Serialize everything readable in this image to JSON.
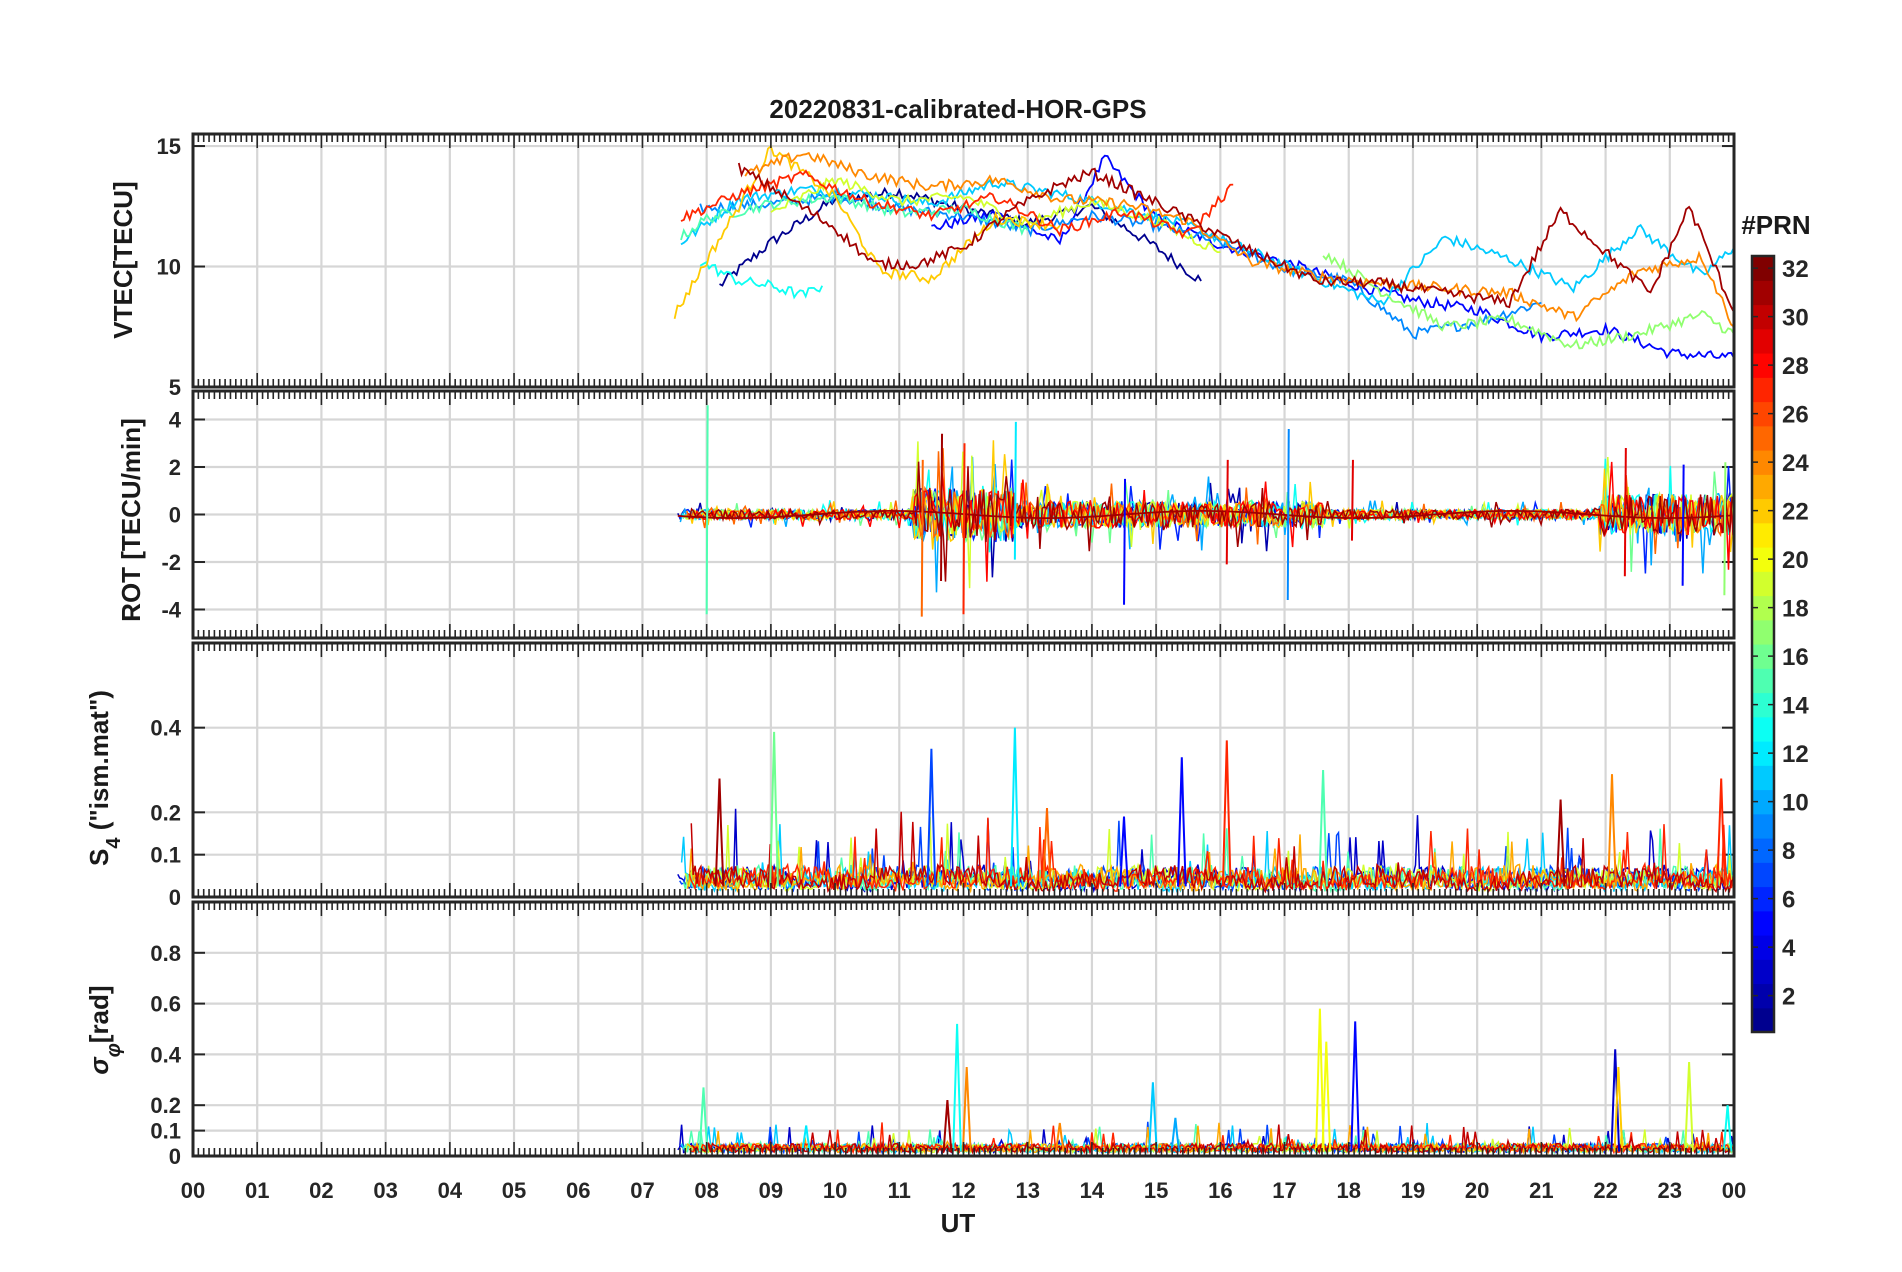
{
  "figure": {
    "title": "20220831-calibrated-HOR-GPS",
    "xlabel": "UT",
    "colorbar_title": "#PRN"
  },
  "chart_data": {
    "type": "line",
    "title": "20220831-calibrated-HOR-GPS",
    "xlabel": "UT",
    "x_range": [
      0,
      24
    ],
    "x_tick_labels": [
      "00",
      "01",
      "02",
      "03",
      "04",
      "05",
      "06",
      "07",
      "08",
      "09",
      "10",
      "11",
      "12",
      "13",
      "14",
      "15",
      "16",
      "17",
      "18",
      "19",
      "20",
      "21",
      "22",
      "23",
      "00"
    ],
    "data_start_hour": 7.55,
    "colorbar": {
      "title": "#PRN",
      "range": [
        1,
        32
      ],
      "ticks": [
        2,
        4,
        6,
        8,
        10,
        12,
        14,
        16,
        18,
        20,
        22,
        24,
        26,
        28,
        30,
        32
      ],
      "colormap": [
        "#00008f",
        "#0000ff",
        "#0080ff",
        "#00ffff",
        "#80ff80",
        "#ffff00",
        "#ff8000",
        "#ff0000",
        "#800000"
      ]
    },
    "panels": [
      {
        "id": "vtec",
        "ylabel": "VTEC[TECU]",
        "ylim": [
          5,
          15.5
        ],
        "yticks": [
          5,
          10,
          15
        ],
        "ytick_labels": [
          "5",
          "10",
          "15"
        ],
        "series": [
          {
            "prn": 1,
            "hours": [
              8.2,
              9.0,
              10.0,
              11.0,
              12.0,
              13.0,
              14.0,
              15.0,
              15.7
            ],
            "values": [
              9.2,
              11.0,
              12.8,
              13.1,
              12.4,
              11.8,
              12.5,
              10.8,
              9.4
            ]
          },
          {
            "prn": 5,
            "hours": [
              11.5,
              12.5,
              13.5,
              14.2,
              15.0,
              16.0,
              17.0,
              18.0,
              19.0,
              20.0,
              21.0,
              22.0,
              23.0,
              24.0
            ],
            "values": [
              11.6,
              12.2,
              11.0,
              14.5,
              12.0,
              10.9,
              10.2,
              9.3,
              8.6,
              8.2,
              7.1,
              7.4,
              6.4,
              6.2
            ]
          },
          {
            "prn": 9,
            "hours": [
              7.9,
              9.0,
              10.0,
              11.0,
              12.0,
              13.0,
              14.0,
              15.0,
              16.0,
              17.0,
              18.0,
              19.0,
              20.0,
              21.0
            ],
            "values": [
              12.4,
              12.6,
              12.9,
              12.4,
              12.1,
              11.5,
              12.1,
              11.7,
              11.0,
              9.9,
              9.4,
              7.2,
              7.7,
              8.5
            ]
          },
          {
            "prn": 11,
            "hours": [
              7.6,
              8.5,
              9.5,
              10.5,
              11.5,
              12.5,
              13.5,
              14.5,
              15.5,
              16.5,
              17.5,
              18.5,
              19.5,
              20.5,
              21.5,
              22.5,
              23.5,
              24.0
            ],
            "values": [
              11.0,
              12.8,
              13.2,
              13.0,
              12.6,
              13.5,
              13.0,
              12.4,
              11.7,
              10.6,
              9.5,
              8.5,
              11.2,
              10.3,
              9.1,
              11.6,
              9.6,
              10.8
            ]
          },
          {
            "prn": 13,
            "hours": [
              7.9,
              8.5,
              9.0,
              9.5,
              9.8
            ],
            "values": [
              10.2,
              9.4,
              9.2,
              8.8,
              9.2
            ]
          },
          {
            "prn": 15,
            "hours": [
              7.6,
              8.0,
              9.0,
              10.0,
              11.0,
              12.0,
              13.0
            ],
            "values": [
              11.2,
              12.0,
              12.6,
              12.9,
              12.2,
              12.4,
              11.5
            ]
          },
          {
            "prn": 17,
            "hours": [
              17.6,
              18.5,
              19.5,
              20.5,
              21.5,
              22.5,
              23.5,
              24.0
            ],
            "values": [
              10.6,
              9.0,
              7.5,
              7.8,
              6.7,
              7.2,
              8.0,
              7.2
            ]
          },
          {
            "prn": 19,
            "hours": [
              9.0,
              10.0,
              11.0,
              12.0,
              13.0,
              14.0,
              15.0,
              16.0
            ],
            "values": [
              12.2,
              13.6,
              12.7,
              12.9,
              11.8,
              12.7,
              11.9,
              10.6
            ]
          },
          {
            "prn": 22,
            "hours": [
              7.5,
              8.5,
              9.0,
              10.0,
              10.7,
              11.5,
              12.5,
              13.5
            ],
            "values": [
              8.0,
              12.5,
              14.9,
              12.9,
              9.8,
              9.5,
              12.0,
              11.7
            ]
          },
          {
            "prn": 24,
            "hours": [
              8.6,
              9.5,
              10.5,
              11.5,
              12.5,
              13.5,
              14.5,
              15.5,
              16.5,
              17.5,
              18.5,
              19.5,
              20.5,
              21.5,
              22.5,
              23.5,
              24.0
            ],
            "values": [
              13.8,
              14.7,
              13.8,
              13.3,
              13.6,
              12.8,
              12.6,
              11.9,
              10.2,
              9.6,
              9.3,
              9.1,
              8.9,
              7.9,
              9.8,
              10.4,
              7.5
            ]
          },
          {
            "prn": 27,
            "hours": [
              7.6,
              8.5,
              9.5,
              10.5,
              11.5,
              12.5,
              13.5,
              14.5,
              15.5,
              16.2
            ],
            "values": [
              12.0,
              13.0,
              13.8,
              12.7,
              12.1,
              12.9,
              11.5,
              12.3,
              11.3,
              13.4
            ]
          },
          {
            "prn": 31,
            "hours": [
              8.5,
              9.3,
              10.0,
              10.6,
              11.3,
              12.0,
              12.8,
              13.5,
              14.0,
              14.8,
              15.5,
              16.5,
              17.5,
              18.5,
              19.5,
              20.5,
              21.3,
              22.0,
              22.7,
              23.3,
              24.0
            ],
            "values": [
              14.1,
              12.8,
              11.6,
              10.1,
              10.1,
              10.8,
              12.4,
              13.4,
              13.9,
              12.9,
              12.0,
              10.6,
              9.4,
              9.3,
              8.9,
              8.5,
              12.3,
              10.6,
              8.9,
              12.5,
              8.1
            ]
          }
        ]
      },
      {
        "id": "rot",
        "ylabel": "ROT [TECU/min]",
        "ylim": [
          -5.2,
          5.2
        ],
        "yticks": [
          -4,
          -2,
          0,
          2,
          4
        ],
        "ytick_labels": [
          "-4",
          "-2",
          "0",
          "2",
          "4"
        ],
        "range_hours": [
          7.55,
          24.0
        ],
        "baseline": 0,
        "approx_envelope": [
          {
            "hours": [
              7.5,
              11.2
            ],
            "amp": 0.6
          },
          {
            "hours": [
              11.2,
              12.8
            ],
            "amp": 3.3
          },
          {
            "hours": [
              12.8,
              17.6
            ],
            "amp": 1.6
          },
          {
            "hours": [
              17.6,
              21.9
            ],
            "amp": 0.6
          },
          {
            "hours": [
              21.9,
              24.0
            ],
            "amp": 2.5
          }
        ],
        "spikes": [
          {
            "hour": 8.0,
            "min": -4.2,
            "max": 4.6,
            "prn": 15
          },
          {
            "hour": 11.35,
            "min": -4.3,
            "max": 2.3,
            "prn": 25
          },
          {
            "hour": 11.65,
            "min": -2.8,
            "max": 3.4,
            "prn": 31
          },
          {
            "hour": 12.0,
            "min": -4.2,
            "max": 3.0,
            "prn": 27
          },
          {
            "hour": 12.8,
            "min": -1.9,
            "max": 3.9,
            "prn": 12
          },
          {
            "hour": 14.5,
            "min": -3.8,
            "max": 1.5,
            "prn": 5
          },
          {
            "hour": 16.1,
            "min": -2.1,
            "max": 2.3,
            "prn": 29
          },
          {
            "hour": 17.05,
            "min": -3.6,
            "max": 3.6,
            "prn": 9
          },
          {
            "hour": 18.05,
            "min": -1.1,
            "max": 2.3,
            "prn": 29
          },
          {
            "hour": 22.3,
            "min": -2.6,
            "max": 2.8,
            "prn": 29
          },
          {
            "hour": 23.2,
            "min": -3.0,
            "max": 2.1,
            "prn": 5
          },
          {
            "hour": 23.85,
            "min": -3.4,
            "max": 2.2,
            "prn": 17
          }
        ]
      },
      {
        "id": "s4",
        "ylabel_main": "S",
        "ylabel_sub": "4",
        "ylabel_rest": " (\"ism.mat\")",
        "ylim": [
          0,
          0.6
        ],
        "yticks": [
          0,
          0.1,
          0.2,
          0.4
        ],
        "ytick_labels": [
          "0",
          "0.1",
          "0.2",
          "0.4"
        ],
        "range_hours": [
          7.55,
          24.0
        ],
        "spikes": [
          {
            "hour": 8.2,
            "value": 0.28,
            "prn": 31
          },
          {
            "hour": 9.05,
            "value": 0.39,
            "prn": 16
          },
          {
            "hour": 11.5,
            "value": 0.35,
            "prn": 7
          },
          {
            "hour": 12.8,
            "value": 0.4,
            "prn": 12
          },
          {
            "hour": 13.3,
            "value": 0.21,
            "prn": 25
          },
          {
            "hour": 14.5,
            "value": 0.19,
            "prn": 5
          },
          {
            "hour": 15.4,
            "value": 0.33,
            "prn": 5
          },
          {
            "hour": 16.1,
            "value": 0.37,
            "prn": 27
          },
          {
            "hour": 17.6,
            "value": 0.3,
            "prn": 15
          },
          {
            "hour": 21.3,
            "value": 0.23,
            "prn": 31
          },
          {
            "hour": 22.1,
            "value": 0.29,
            "prn": 24
          },
          {
            "hour": 23.8,
            "value": 0.28,
            "prn": 27
          }
        ]
      },
      {
        "id": "sigma_phi",
        "ylabel_main": "σ",
        "ylabel_sub": "φ",
        "ylabel_rest": "[rad]",
        "ylim": [
          0,
          1.0
        ],
        "yticks": [
          0,
          0.1,
          0.2,
          0.4,
          0.6,
          0.8
        ],
        "ytick_labels": [
          "0",
          "0.1",
          "0.2",
          "0.4",
          "0.6",
          "0.8"
        ],
        "range_hours": [
          7.55,
          24.0
        ],
        "spikes": [
          {
            "hour": 7.95,
            "value": 0.27,
            "prn": 15
          },
          {
            "hour": 9.55,
            "value": 0.12,
            "prn": 12
          },
          {
            "hour": 11.75,
            "value": 0.22,
            "prn": 31
          },
          {
            "hour": 11.9,
            "value": 0.52,
            "prn": 13
          },
          {
            "hour": 12.05,
            "value": 0.35,
            "prn": 24
          },
          {
            "hour": 13.5,
            "value": 0.13,
            "prn": 24
          },
          {
            "hour": 14.95,
            "value": 0.29,
            "prn": 11
          },
          {
            "hour": 15.3,
            "value": 0.15,
            "prn": 10
          },
          {
            "hour": 17.55,
            "value": 0.58,
            "prn": 20
          },
          {
            "hour": 17.65,
            "value": 0.45,
            "prn": 20
          },
          {
            "hour": 18.1,
            "value": 0.53,
            "prn": 5
          },
          {
            "hour": 22.15,
            "value": 0.42,
            "prn": 3
          },
          {
            "hour": 22.2,
            "value": 0.35,
            "prn": 22
          },
          {
            "hour": 23.3,
            "value": 0.37,
            "prn": 19
          },
          {
            "hour": 23.9,
            "value": 0.2,
            "prn": 13
          }
        ]
      }
    ]
  }
}
